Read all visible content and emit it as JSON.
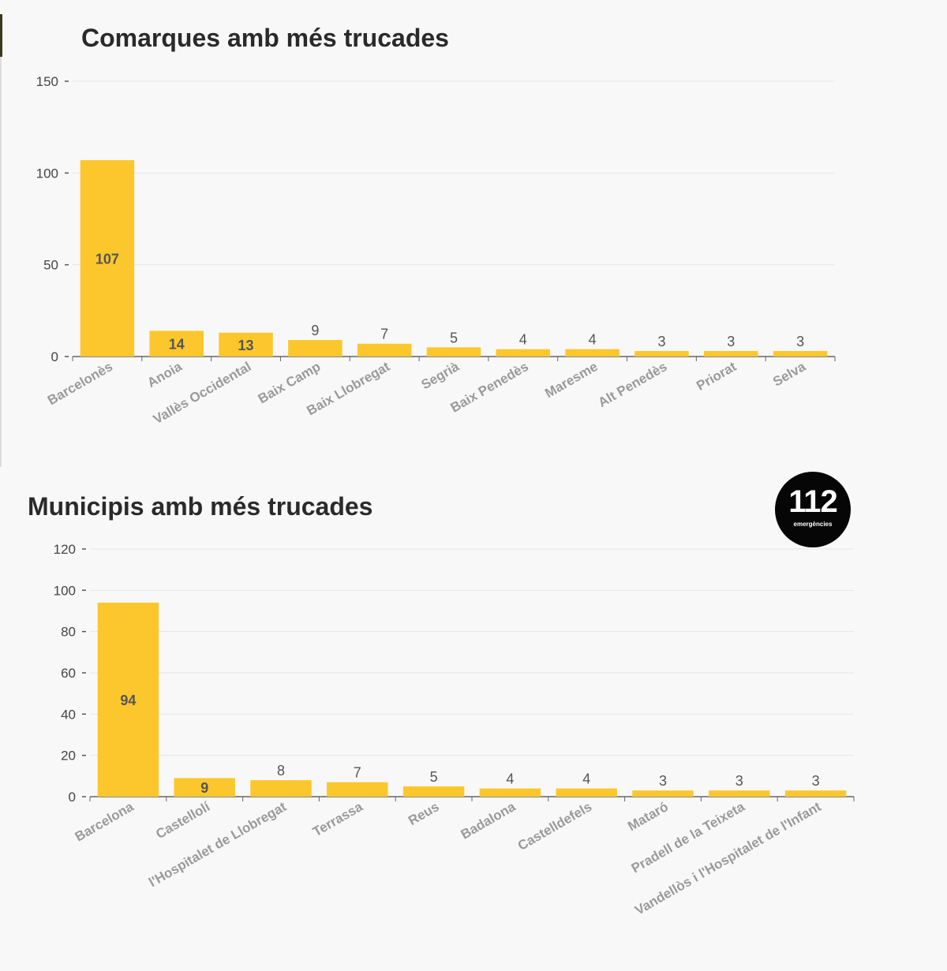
{
  "chart_data": [
    {
      "type": "bar",
      "title": "Comarques amb més trucades",
      "categories": [
        "Barcelonès",
        "Anoia",
        "Vallès Occidental",
        "Baix Camp",
        "Baix Llobregat",
        "Segrià",
        "Baix Penedès",
        "Maresme",
        "Alt Penedès",
        "Priorat",
        "Selva"
      ],
      "values": [
        107,
        14,
        13,
        9,
        7,
        5,
        4,
        4,
        3,
        3,
        3
      ],
      "xlabel": "",
      "ylabel": "",
      "ylim": [
        0,
        150
      ],
      "yticks": [
        0,
        50,
        100,
        150
      ],
      "grid": true,
      "color": "#fcc72c"
    },
    {
      "type": "bar",
      "title": "Municipis amb més trucades",
      "categories": [
        "Barcelona",
        "Castellolí",
        "l'Hospitalet de Llobregat",
        "Terrassa",
        "Reus",
        "Badalona",
        "Castelldefels",
        "Mataró",
        "Pradell de la Teixeta",
        "Vandellòs i l'Hospitalet de l'Infant"
      ],
      "values": [
        94,
        9,
        8,
        7,
        5,
        4,
        4,
        3,
        3,
        3
      ],
      "xlabel": "",
      "ylabel": "",
      "ylim": [
        0,
        120
      ],
      "yticks": [
        0,
        20,
        40,
        60,
        80,
        100,
        120
      ],
      "grid": true,
      "color": "#fcc72c"
    }
  ],
  "logo": {
    "number": "112",
    "subtitle": "emergències"
  }
}
